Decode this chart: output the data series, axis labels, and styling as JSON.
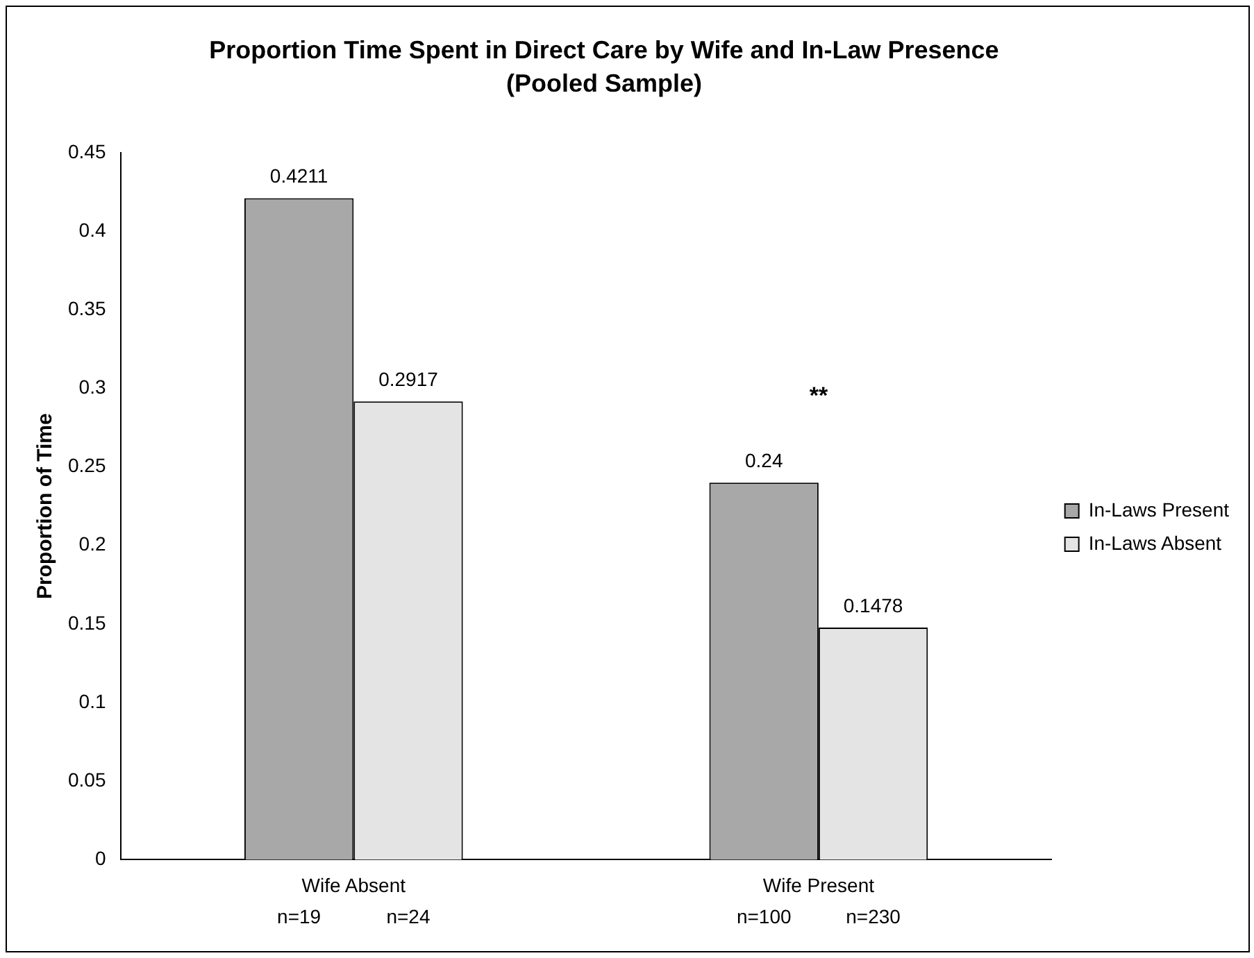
{
  "chart_data": {
    "type": "bar",
    "title": "Proportion Time Spent in Direct Care by Wife and In-Law Presence (Pooled Sample)",
    "ylabel": "Proportion of Time",
    "categories": [
      "Wife Absent",
      "Wife Present"
    ],
    "series": [
      {
        "name": "In-Laws Present",
        "color": "#a8a8a8",
        "values": [
          0.4211,
          0.24
        ]
      },
      {
        "name": "In-Laws Absent",
        "color": "#e4e4e4",
        "values": [
          0.2917,
          0.1478
        ]
      }
    ],
    "ylim": [
      0,
      0.45
    ],
    "yticks": [
      0,
      0.05,
      0.1,
      0.15,
      0.2,
      0.25,
      0.3,
      0.35,
      0.4,
      0.45
    ],
    "grid": false,
    "legend": "right",
    "data_labels": true,
    "annotations": [
      "**",
      "n=19",
      "n=24",
      "n=100",
      "n=230"
    ]
  }
}
